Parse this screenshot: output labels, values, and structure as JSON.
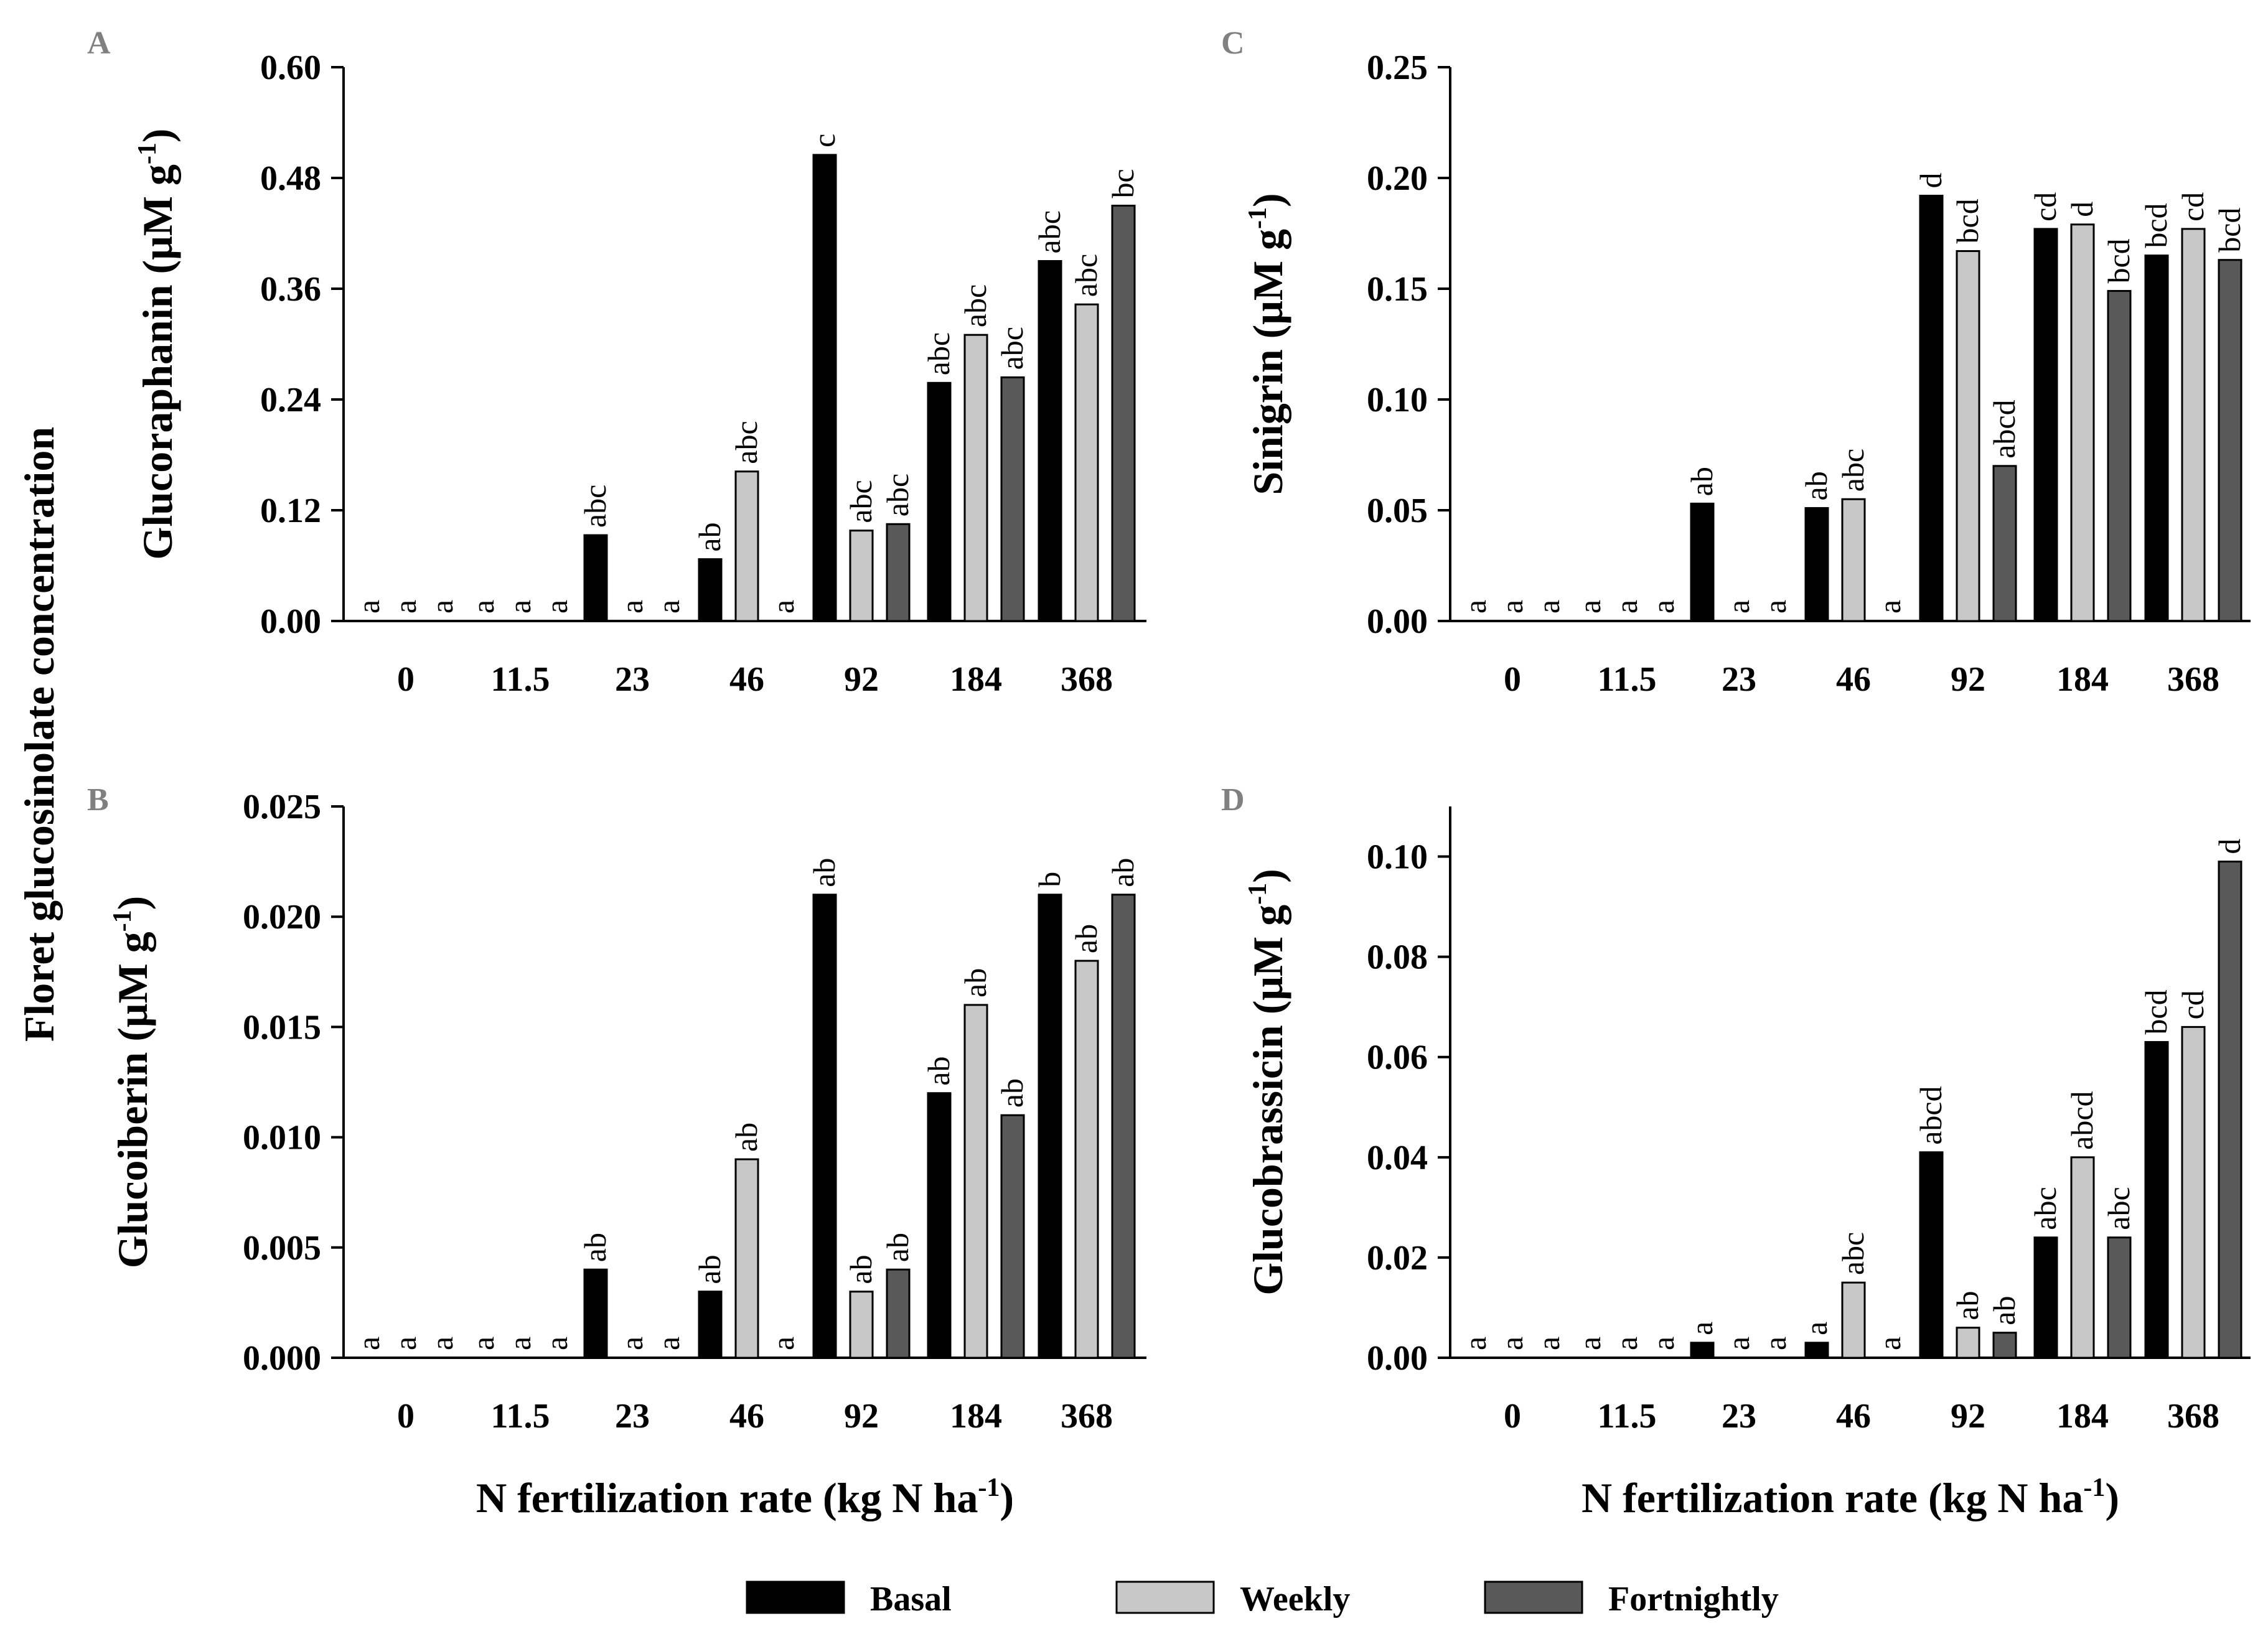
{
  "shared_ylabel": "Floret glucosinolate concentration",
  "legend": [
    {
      "label": "Basal",
      "color": "#000000"
    },
    {
      "label": "Weekly",
      "color": "#c8c8c8"
    },
    {
      "label": "Fortnightly",
      "color": "#595959"
    }
  ],
  "chart_data": [
    {
      "panel": "A",
      "type": "bar",
      "ylabel": "Glucoraphanin (μM g-1)",
      "ylabel_main": "Glucoraphanin (μM g",
      "ylabel_sup": "-1",
      "ylabel_end": ")",
      "xlabel_main": "N fertilization rate (kg N ha",
      "xlabel_sup": "-1",
      "xlabel_end": ")",
      "categories": [
        "0",
        "11.5",
        "23",
        "46",
        "92",
        "184",
        "368"
      ],
      "ylim": [
        0,
        0.6
      ],
      "yticks": [
        "0.00",
        "0.12",
        "0.24",
        "0.36",
        "0.48",
        "0.60"
      ],
      "series": [
        {
          "name": "Basal",
          "values": [
            0,
            0,
            0.093,
            0.067,
            0.505,
            0.258,
            0.39
          ],
          "labels": [
            "a",
            "a",
            "abc",
            "ab",
            "c",
            "abc",
            "abc"
          ]
        },
        {
          "name": "Weekly",
          "values": [
            0,
            0,
            0,
            0.162,
            0.098,
            0.31,
            0.343
          ],
          "labels": [
            "a",
            "a",
            "a",
            "abc",
            "abc",
            "abc",
            "abc"
          ]
        },
        {
          "name": "Fortnightly",
          "values": [
            0,
            0,
            0,
            0,
            0.105,
            0.264,
            0.45
          ],
          "labels": [
            "a",
            "a",
            "a",
            "a",
            "abc",
            "abc",
            "bc"
          ]
        }
      ]
    },
    {
      "panel": "B",
      "type": "bar",
      "ylabel": "Glucoiberin (μM g-1)",
      "ylabel_main": "Glucoiberin (μM g",
      "ylabel_sup": "-1",
      "ylabel_end": ")",
      "xlabel_main": "N fertilization rate (kg N ha",
      "xlabel_sup": "-1",
      "xlabel_end": ")",
      "categories": [
        "0",
        "11.5",
        "23",
        "46",
        "92",
        "184",
        "368"
      ],
      "ylim": [
        0,
        0.025
      ],
      "yticks": [
        "0.000",
        "0.005",
        "0.010",
        "0.015",
        "0.020",
        "0.025"
      ],
      "series": [
        {
          "name": "Basal",
          "values": [
            0,
            0,
            0.004,
            0.003,
            0.021,
            0.012,
            0.021
          ],
          "labels": [
            "a",
            "a",
            "ab",
            "ab",
            "ab",
            "ab",
            "b"
          ]
        },
        {
          "name": "Weekly",
          "values": [
            0,
            0,
            0,
            0.009,
            0.003,
            0.016,
            0.018
          ],
          "labels": [
            "a",
            "a",
            "a",
            "ab",
            "ab",
            "ab",
            "ab"
          ]
        },
        {
          "name": "Fortnightly",
          "values": [
            0,
            0,
            0,
            0,
            0.004,
            0.011,
            0.021
          ],
          "labels": [
            "a",
            "a",
            "a",
            "a",
            "ab",
            "ab",
            "ab"
          ]
        }
      ]
    },
    {
      "panel": "C",
      "type": "bar",
      "ylabel": "Sinigrin (μM g-1)",
      "ylabel_main": "Sinigrin (μM g",
      "ylabel_sup": "-1",
      "ylabel_end": ")",
      "xlabel_main": "",
      "xlabel_sup": "",
      "xlabel_end": "",
      "categories": [
        "0",
        "11.5",
        "23",
        "46",
        "92",
        "184",
        "368"
      ],
      "ylim": [
        0,
        0.25
      ],
      "yticks": [
        "0.00",
        "0.05",
        "0.10",
        "0.15",
        "0.20",
        "0.25"
      ],
      "series": [
        {
          "name": "Basal",
          "values": [
            0,
            0,
            0.053,
            0.051,
            0.192,
            0.177,
            0.165
          ],
          "labels": [
            "a",
            "a",
            "ab",
            "ab",
            "d",
            "cd",
            "bcd"
          ]
        },
        {
          "name": "Weekly",
          "values": [
            0,
            0,
            0,
            0.055,
            0.167,
            0.179,
            0.177
          ],
          "labels": [
            "a",
            "a",
            "a",
            "abc",
            "bcd",
            "d",
            "cd"
          ]
        },
        {
          "name": "Fortnightly",
          "values": [
            0,
            0,
            0,
            0,
            0.07,
            0.149,
            0.163
          ],
          "labels": [
            "a",
            "a",
            "a",
            "a",
            "abcd",
            "bcd",
            "bcd"
          ]
        }
      ]
    },
    {
      "panel": "D",
      "type": "bar",
      "ylabel": "Glucobrassicin (μM g-1)",
      "ylabel_main": "Glucobrassicin (μM g",
      "ylabel_sup": "-1",
      "ylabel_end": ")",
      "xlabel_main": "N fertilization rate (kg N ha",
      "xlabel_sup": "-1",
      "xlabel_end": ")",
      "categories": [
        "0",
        "11.5",
        "23",
        "46",
        "92",
        "184",
        "368"
      ],
      "ylim": [
        0,
        0.11
      ],
      "yticks": [
        "0.00",
        "0.02",
        "0.04",
        "0.06",
        "0.08",
        "0.10"
      ],
      "series": [
        {
          "name": "Basal",
          "values": [
            0,
            0,
            0.003,
            0.003,
            0.041,
            0.024,
            0.063
          ],
          "labels": [
            "a",
            "a",
            "a",
            "a",
            "abcd",
            "abc",
            "bcd"
          ]
        },
        {
          "name": "Weekly",
          "values": [
            0,
            0,
            0,
            0.015,
            0.006,
            0.04,
            0.066
          ],
          "labels": [
            "a",
            "a",
            "a",
            "abc",
            "ab",
            "abcd",
            "cd"
          ]
        },
        {
          "name": "Fortnightly",
          "values": [
            0,
            0,
            0,
            0,
            0.005,
            0.024,
            0.099
          ],
          "labels": [
            "a",
            "a",
            "a",
            "a",
            "ab",
            "abc",
            "d"
          ]
        }
      ]
    }
  ]
}
